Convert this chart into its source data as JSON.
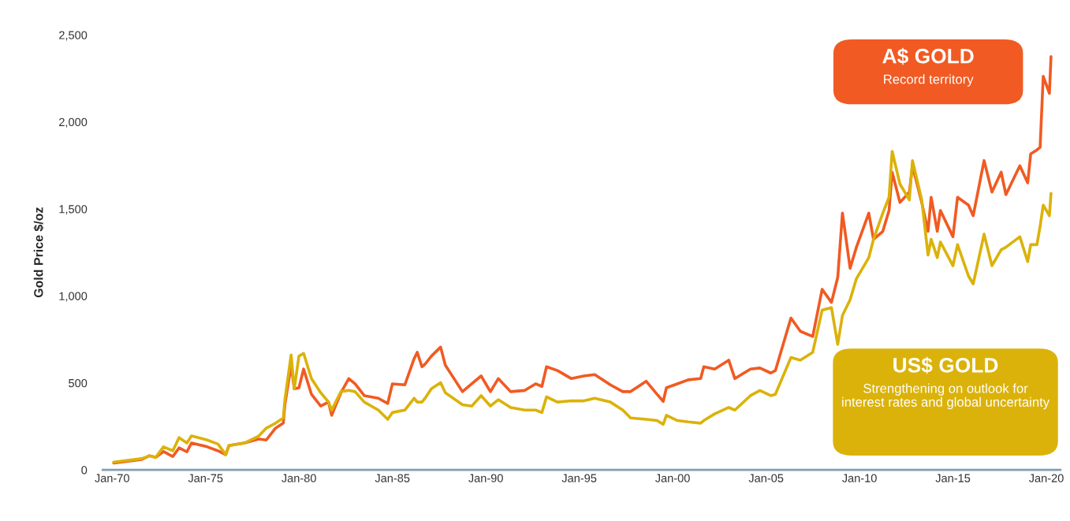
{
  "chart_data": {
    "type": "line",
    "ylabel": "Gold Price $/oz",
    "x": [
      "1970-02",
      "1971-08",
      "1972-01",
      "1972-05",
      "1972-10",
      "1973-04",
      "1973-08",
      "1974-01",
      "1974-04",
      "1975-02",
      "1975-09",
      "1976-02",
      "1976-04",
      "1977-02",
      "1977-11",
      "1978-04",
      "1978-10",
      "1979-03",
      "1979-04",
      "1979-08",
      "1979-10",
      "1980-01",
      "1980-04",
      "1980-09",
      "1981-03",
      "1981-08",
      "1981-10",
      "1982-04",
      "1982-09",
      "1983-01",
      "1983-07",
      "1984-04",
      "1984-10",
      "1985-01",
      "1985-09",
      "1986-03",
      "1986-05",
      "1986-08",
      "1986-10",
      "1987-02",
      "1987-08",
      "1987-11",
      "1988-10",
      "1989-04",
      "1989-10",
      "1990-04",
      "1990-09",
      "1991-05",
      "1992-02",
      "1992-09",
      "1993-01",
      "1993-04",
      "1993-11",
      "1994-08",
      "1995-04",
      "1995-11",
      "1996-09",
      "1997-05",
      "1997-10",
      "1998-08",
      "1999-03",
      "1999-07",
      "1999-09",
      "2000-04",
      "2000-11",
      "2001-07",
      "2001-09",
      "2002-04",
      "2003-01",
      "2003-05",
      "2004-03",
      "2004-09",
      "2005-04",
      "2005-07",
      "2006-05",
      "2006-11",
      "2007-07",
      "2008-01",
      "2008-07",
      "2008-11",
      "2009-02",
      "2009-07",
      "2009-11",
      "2010-07",
      "2010-10",
      "2011-04",
      "2011-08",
      "2011-10",
      "2012-03",
      "2012-09",
      "2012-11",
      "2013-05",
      "2013-09",
      "2013-11",
      "2014-03",
      "2014-05",
      "2015-01",
      "2015-04",
      "2015-11",
      "2016-02",
      "2016-09",
      "2017-02",
      "2017-08",
      "2017-11",
      "2018-08",
      "2019-01",
      "2019-03",
      "2019-07",
      "2019-09",
      "2019-11",
      "2020-03",
      "2020-04"
    ],
    "series": [
      {
        "name": "A$ GOLD",
        "color": "#f15a22",
        "values": [
          40,
          60,
          82,
          72,
          106,
          77,
          127,
          104,
          155,
          133,
          110,
          88,
          140,
          155,
          178,
          172,
          240,
          269,
          375,
          602,
          466,
          472,
          580,
          435,
          367,
          390,
          314,
          444,
          525,
          495,
          427,
          412,
          382,
          495,
          489,
          639,
          676,
          593,
          608,
          654,
          706,
          602,
          450,
          495,
          540,
          450,
          525,
          450,
          457,
          495,
          480,
          593,
          571,
          525,
          540,
          548,
          489,
          450,
          450,
          510,
          435,
          394,
          472,
          495,
          518,
          525,
          593,
          580,
          631,
          525,
          580,
          586,
          557,
          571,
          873,
          797,
          767,
          1038,
          963,
          1106,
          1476,
          1159,
          1280,
          1476,
          1325,
          1371,
          1491,
          1711,
          1537,
          1597,
          1748,
          1537,
          1371,
          1567,
          1371,
          1491,
          1340,
          1567,
          1522,
          1461,
          1778,
          1597,
          1711,
          1582,
          1748,
          1650,
          1816,
          1839,
          1854,
          2262,
          2164,
          2375
        ]
      },
      {
        "name": "US$ GOLD",
        "color": "#dbb20a",
        "values": [
          45,
          65,
          80,
          72,
          133,
          110,
          186,
          155,
          196,
          172,
          149,
          88,
          140,
          155,
          194,
          240,
          269,
          299,
          404,
          661,
          466,
          654,
          670,
          525,
          444,
          390,
          344,
          450,
          457,
          450,
          390,
          344,
          291,
          330,
          344,
          412,
          390,
          390,
          412,
          466,
          502,
          444,
          375,
          367,
          427,
          367,
          404,
          359,
          344,
          344,
          330,
          420,
          390,
          397,
          397,
          412,
          390,
          344,
          299,
          291,
          284,
          262,
          314,
          284,
          276,
          269,
          284,
          322,
          359,
          344,
          427,
          457,
          427,
          435,
          646,
          631,
          676,
          918,
          933,
          722,
          888,
          978,
          1099,
          1220,
          1325,
          1476,
          1567,
          1831,
          1643,
          1552,
          1778,
          1552,
          1235,
          1325,
          1220,
          1310,
          1174,
          1295,
          1114,
          1069,
          1355,
          1174,
          1265,
          1280,
          1340,
          1197,
          1295,
          1295,
          1400,
          1522,
          1461,
          1590
        ]
      }
    ],
    "annotations": [
      "Record territory",
      "Strengthening on outlook for interest rates and global uncertainty"
    ],
    "xlim": [
      "1969-07",
      "2020-10"
    ],
    "xticks": [
      {
        "value": "1970-01",
        "label": "Jan-70"
      },
      {
        "value": "1975-01",
        "label": "Jan-75"
      },
      {
        "value": "1980-01",
        "label": "Jan-80"
      },
      {
        "value": "1985-01",
        "label": "Jan-85"
      },
      {
        "value": "1990-01",
        "label": "Jan-90"
      },
      {
        "value": "1995-01",
        "label": "Jan-95"
      },
      {
        "value": "2000-01",
        "label": "Jan-00"
      },
      {
        "value": "2005-01",
        "label": "Jan-05"
      },
      {
        "value": "2010-01",
        "label": "Jan-10"
      },
      {
        "value": "2015-01",
        "label": "Jan-15"
      },
      {
        "value": "2020-01",
        "label": "Jan-20"
      }
    ],
    "ylim": [
      0,
      2500
    ],
    "yticks": [
      0,
      {
        "value": 500,
        "label": "500"
      },
      {
        "value": 1000,
        "label": "1,000"
      },
      {
        "value": 1500,
        "label": "1,500"
      },
      {
        "value": 2000,
        "label": "2,000"
      },
      {
        "value": 2500,
        "label": "2,500"
      }
    ],
    "grid": false,
    "line_style": "solid"
  }
}
